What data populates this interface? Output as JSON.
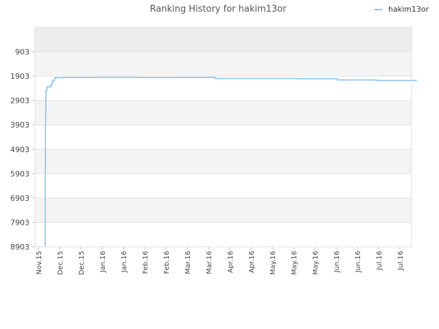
{
  "chart_data": {
    "type": "line",
    "title": "Ranking History for hakim13or",
    "xlabel": "",
    "ylabel": "",
    "y_axis_inverted": true,
    "ylim": [
      8903,
      -97
    ],
    "yticks": [
      903,
      1903,
      2903,
      3903,
      4903,
      5903,
      6903,
      7903,
      8903
    ],
    "xticks": [
      "Nov.15",
      "Dec.15",
      "Dec.15",
      "Jan.16",
      "Jan.16",
      "Feb.16",
      "Feb.16",
      "Mar.16",
      "Mar.16",
      "Apr.16",
      "Apr.16",
      "May.16",
      "May.16",
      "May.16",
      "Jun.16",
      "Jun.16",
      "Jul.16",
      "Jul.16"
    ],
    "grid": "horizontal bands",
    "legend_position": "top-right",
    "series": [
      {
        "name": "hakim13or",
        "color": "#88c4ee",
        "x": [
          0.32,
          0.32,
          0.33,
          0.33,
          0.34,
          0.34,
          0.35,
          0.35,
          0.4,
          0.4,
          0.55,
          0.55,
          0.6,
          0.6,
          0.62,
          0.62,
          0.63,
          0.63,
          0.65,
          0.65,
          0.75,
          0.75,
          0.8,
          0.8,
          0.95,
          0.95,
          1.2,
          1.2,
          2.5,
          2.5,
          4.8,
          4.8,
          6.6,
          6.6,
          8.3,
          8.3,
          12.2,
          12.2,
          14.05,
          14.05,
          15.9,
          15.9,
          17.8
        ],
        "y": [
          8903,
          6000,
          5900,
          3950,
          3850,
          3500,
          3400,
          2500,
          2500,
          2350,
          2350,
          2300,
          2300,
          2250,
          2250,
          2200,
          2200,
          2200,
          2200,
          2100,
          2100,
          2000,
          2000,
          1960,
          1960,
          1970,
          1970,
          1960,
          1960,
          1950,
          1950,
          1960,
          1960,
          1955,
          1955,
          2000,
          2000,
          2010,
          2010,
          2060,
          2060,
          2080,
          2080
        ]
      }
    ]
  }
}
